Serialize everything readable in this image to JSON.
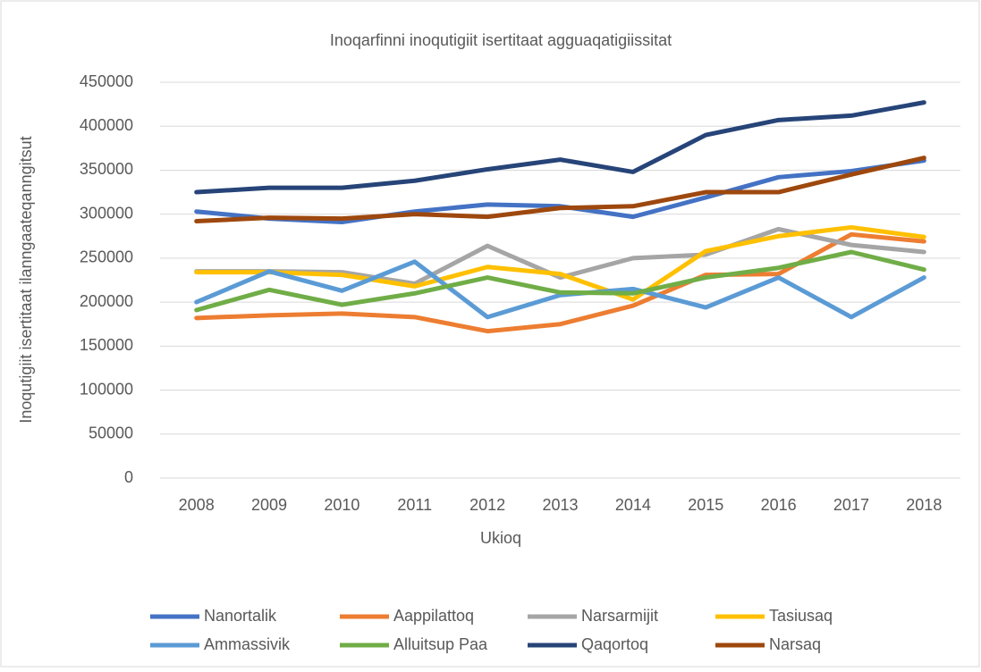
{
  "chart_data": {
    "type": "line",
    "title": "Inoqarfinni inoqutigiit isertitaat agguaqatigiissitat",
    "x_label": "Ukioq",
    "y_label": "Inoqutigiit isertitaat ilanngaateqanngitsut",
    "categories": [
      "2008",
      "2009",
      "2010",
      "2011",
      "2012",
      "2013",
      "2014",
      "2015",
      "2016",
      "2017",
      "2018"
    ],
    "series": [
      {
        "name": "Nanortalik",
        "color": "#4472c4",
        "values": [
          303000,
          295000,
          291000,
          303000,
          311000,
          309000,
          297000,
          319000,
          342000,
          349000,
          361000
        ]
      },
      {
        "name": "Aappilattoq",
        "color": "#ed7d31",
        "values": [
          182000,
          185000,
          187000,
          183000,
          167000,
          175000,
          196000,
          231000,
          232000,
          277000,
          269000
        ]
      },
      {
        "name": "Narsarmijit",
        "color": "#a5a5a5",
        "values": [
          235000,
          235000,
          234000,
          221000,
          264000,
          228000,
          250000,
          254000,
          283000,
          265000,
          257000
        ]
      },
      {
        "name": "Tasiusaq",
        "color": "#ffc000",
        "values": [
          234000,
          234000,
          231000,
          218000,
          240000,
          232000,
          203000,
          258000,
          275000,
          285000,
          274000
        ]
      },
      {
        "name": "Ammassivik",
        "color": "#5b9bd5",
        "values": [
          200000,
          235000,
          213000,
          246000,
          183000,
          208000,
          215000,
          194000,
          228000,
          183000,
          228000
        ]
      },
      {
        "name": "Alluitsup Paa",
        "color": "#70ad47",
        "values": [
          191000,
          214000,
          197000,
          210000,
          228000,
          211000,
          210000,
          228000,
          239000,
          257000,
          237000
        ]
      },
      {
        "name": "Qaqortoq",
        "color": "#264478",
        "values": [
          325000,
          330000,
          330000,
          338000,
          351000,
          362000,
          348000,
          390000,
          407000,
          412000,
          427000
        ]
      },
      {
        "name": "Narsaq",
        "color": "#9e480e",
        "values": [
          292000,
          296000,
          295000,
          300000,
          297000,
          307000,
          309000,
          325000,
          325000,
          345000,
          364000
        ]
      }
    ],
    "ylim": [
      0,
      450000
    ],
    "yticks": [
      0,
      50000,
      100000,
      150000,
      200000,
      250000,
      300000,
      350000,
      400000,
      450000
    ],
    "grid": true,
    "legend": "bottom"
  }
}
